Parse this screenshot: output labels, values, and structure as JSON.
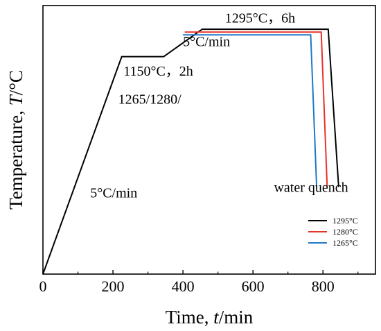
{
  "chart_data": {
    "type": "line",
    "xlabel": "Time, t/min",
    "xlabel_parts": {
      "pre": "Time, ",
      "var": "t",
      "post": "/min"
    },
    "ylabel": "Temperature, T/°C",
    "ylabel_parts": {
      "pre": "Temperature, ",
      "var": "T",
      "post": "/°C"
    },
    "xlim": [
      0,
      950
    ],
    "ylim": [
      0,
      1420
    ],
    "xticks": [
      0,
      200,
      400,
      600,
      800
    ],
    "xtick_labels": [
      "0",
      "200",
      "400",
      "600",
      "800"
    ],
    "yticks_shown": false,
    "grid": false,
    "legend_position": "bottom-right",
    "series": [
      {
        "name": "1295°C",
        "color": "#000000",
        "x": [
          0,
          225,
          345,
          455,
          815,
          845
        ],
        "y": [
          0,
          1150,
          1150,
          1295,
          1295,
          460
        ]
      },
      {
        "name": "1280°C",
        "color": "#e8322b",
        "x": [
          405,
          795,
          812
        ],
        "y": [
          1280,
          1280,
          460
        ]
      },
      {
        "name": "1265°C",
        "color": "#1f78c8",
        "x": [
          400,
          765,
          782
        ],
        "y": [
          1265,
          1265,
          460
        ]
      }
    ],
    "annotations": [
      {
        "text": "1295°C，6h",
        "x": 520,
        "y": 1330
      },
      {
        "text": "5°C/min",
        "x": 400,
        "y": 1205
      },
      {
        "text": "1150°C，2h",
        "x": 230,
        "y": 1050
      },
      {
        "text": "1265/1280/",
        "x": 215,
        "y": 900
      },
      {
        "text": "water quench",
        "x": 660,
        "y": 435
      },
      {
        "text": "5°C/min",
        "x": 135,
        "y": 405
      }
    ]
  }
}
